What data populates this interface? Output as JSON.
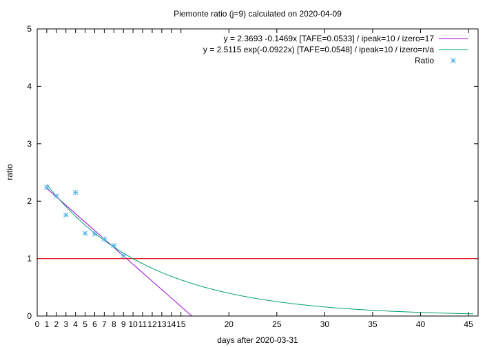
{
  "chart_data": {
    "type": "line",
    "title": "Piemonte ratio (j=9) calculated on 2020-04-09",
    "xlabel": "days after 2020-03-31",
    "ylabel": "ratio",
    "xlim": [
      0,
      46
    ],
    "ylim": [
      0,
      5
    ],
    "x_ticks": [
      0,
      1,
      2,
      3,
      4,
      5,
      6,
      7,
      8,
      9,
      10,
      11,
      12,
      13,
      14,
      15,
      20,
      25,
      30,
      35,
      40,
      45
    ],
    "y_ticks": [
      0,
      1,
      2,
      3,
      4,
      5
    ],
    "legend_position": "top-right",
    "reference_line": {
      "y": 1,
      "color": "#e41a1c"
    },
    "series": [
      {
        "name": "y = 2.3693 -0.1469x  [TAFE=0.0533] / ipeak=10 / izero=17",
        "kind": "linear_fit",
        "intercept": 2.3693,
        "slope": -0.1469,
        "x_range": [
          1,
          16.13
        ],
        "color": "#9400d3"
      },
      {
        "name": "y = 2.5115 exp(-0.0922x)  [TAFE=0.0548] / ipeak=10 / izero=n/a",
        "kind": "exp_fit",
        "a": 2.5115,
        "b": -0.0922,
        "x_range": [
          1,
          45.5
        ],
        "color": "#009e73"
      },
      {
        "name": "Ratio",
        "kind": "points",
        "x": [
          1,
          2,
          3,
          4,
          5,
          6,
          7,
          8,
          9
        ],
        "y": [
          2.24,
          2.09,
          1.76,
          2.15,
          1.44,
          1.43,
          1.34,
          1.23,
          1.05
        ],
        "color": "#56b4e9"
      }
    ]
  }
}
